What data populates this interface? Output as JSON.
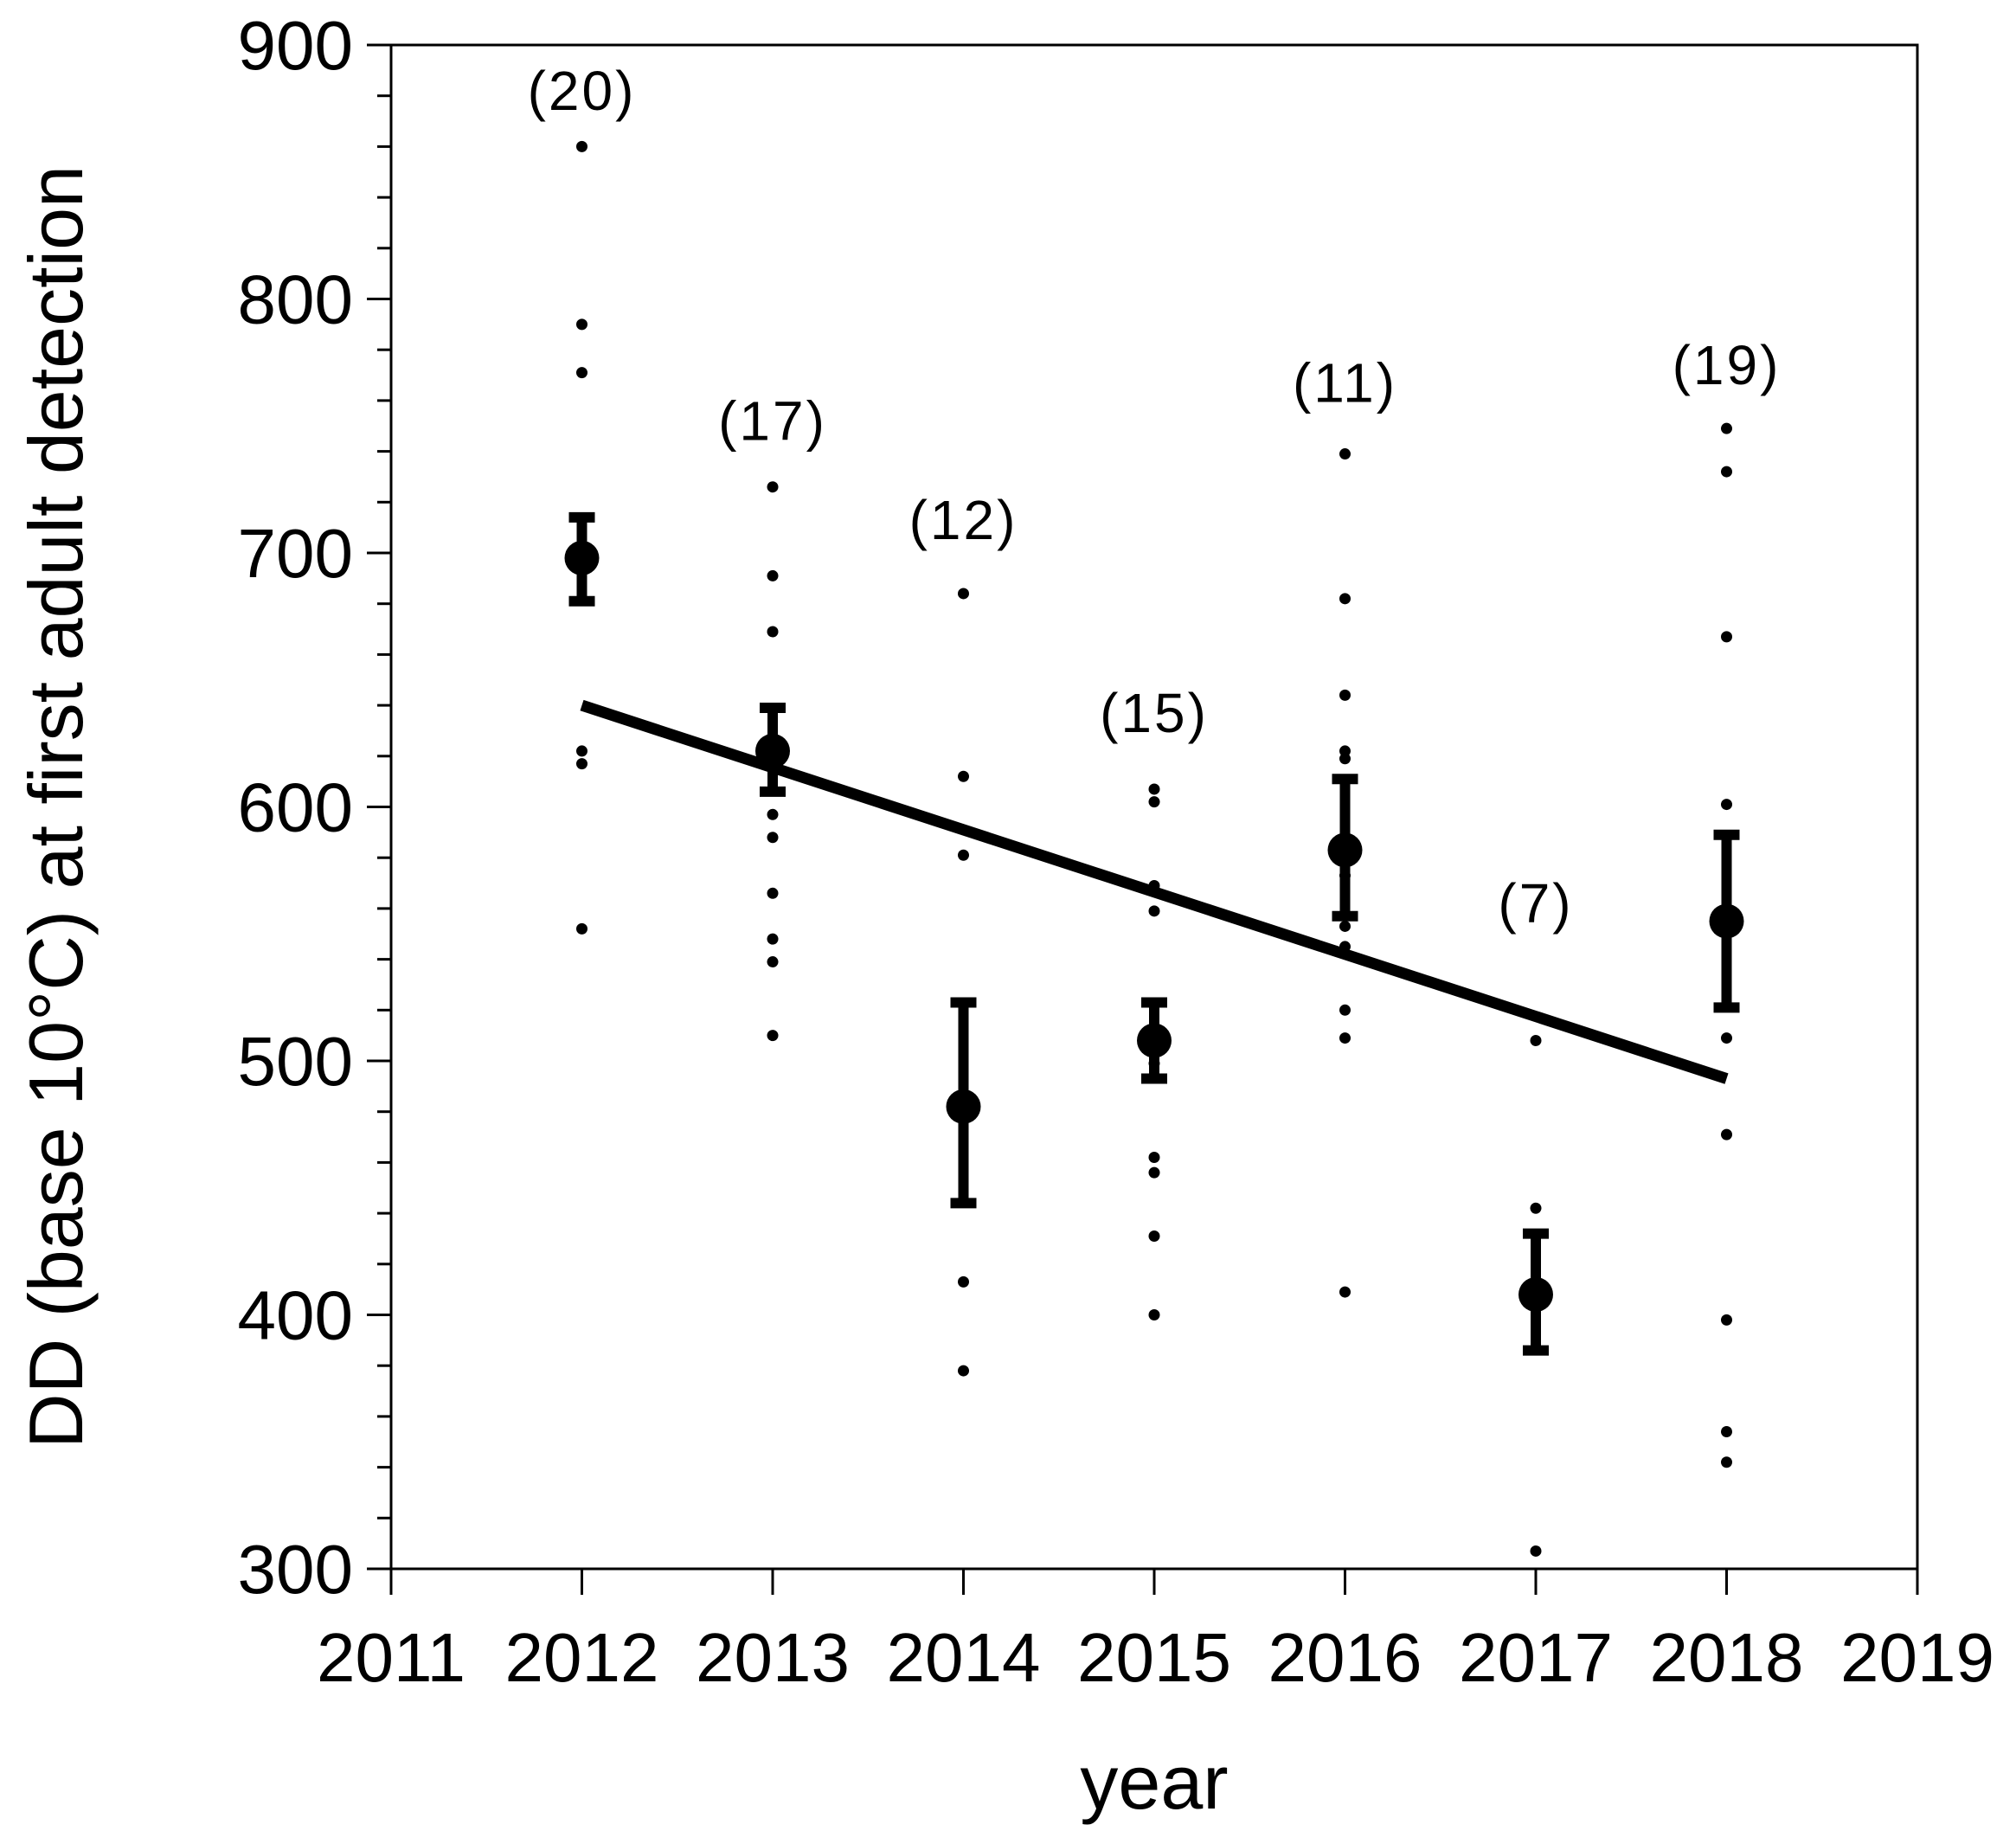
{
  "figure": {
    "background_color": "#ffffff",
    "ink_color": "#000000"
  },
  "chart_data": {
    "type": "scatter",
    "title": "",
    "xlabel": "year",
    "ylabel": "DD (base 10°C) at first adult detection",
    "xlim": [
      2011,
      2019
    ],
    "ylim": [
      300,
      900
    ],
    "x_ticks": [
      2011,
      2012,
      2013,
      2014,
      2015,
      2016,
      2017,
      2018,
      2019
    ],
    "y_major_ticks": [
      300,
      400,
      500,
      600,
      700,
      800,
      900
    ],
    "y_minor_step": 20,
    "grid": "off",
    "legend": "none",
    "groups": [
      {
        "year": 2012,
        "n": 20,
        "n_label": "(20)",
        "n_label_y": 882,
        "mean": 698,
        "ci_low": 681,
        "ci_high": 714,
        "points": [
          860,
          790,
          771,
          622,
          617,
          552
        ]
      },
      {
        "year": 2013,
        "n": 17,
        "n_label": "(17)",
        "n_label_y": 752,
        "mean": 622,
        "ci_low": 606,
        "ci_high": 639,
        "points": [
          726,
          691,
          669,
          597,
          588,
          566,
          548,
          539,
          510
        ]
      },
      {
        "year": 2014,
        "n": 12,
        "n_label": "(12)",
        "n_label_y": 713,
        "mean": 482,
        "ci_low": 444,
        "ci_high": 523,
        "points": [
          684,
          612,
          581,
          413,
          378
        ]
      },
      {
        "year": 2015,
        "n": 15,
        "n_label": "(15)",
        "n_label_y": 637,
        "mean": 508,
        "ci_low": 493,
        "ci_high": 523,
        "points": [
          607,
          602,
          569,
          559,
          499,
          462,
          456,
          431,
          400
        ]
      },
      {
        "year": 2016,
        "n": 11,
        "n_label": "(11)",
        "n_label_y": 767,
        "mean": 583,
        "ci_low": 557,
        "ci_high": 611,
        "points": [
          739,
          682,
          644,
          622,
          619,
          573,
          553,
          545,
          520,
          509,
          409
        ]
      },
      {
        "year": 2017,
        "n": 7,
        "n_label": "(7)",
        "n_label_y": 562,
        "mean": 408,
        "ci_low": 386,
        "ci_high": 432,
        "points": [
          508,
          442,
          307
        ]
      },
      {
        "year": 2018,
        "n": 19,
        "n_label": "(19)",
        "n_label_y": 774,
        "mean": 555,
        "ci_low": 521,
        "ci_high": 589,
        "points": [
          749,
          732,
          667,
          601,
          509,
          471,
          398,
          354,
          342
        ]
      }
    ],
    "trend_line": {
      "x1": 2012,
      "y1": 640,
      "x2": 2018,
      "y2": 493
    }
  }
}
